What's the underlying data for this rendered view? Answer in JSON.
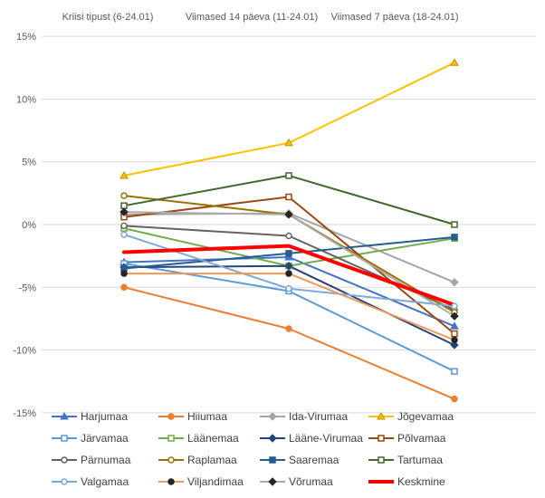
{
  "chart_data": {
    "type": "line",
    "title": "",
    "xlabel": "",
    "ylabel": "",
    "ylim": [
      -15,
      15
    ],
    "grid": true,
    "legend_position": "bottom",
    "value_suffix": "%",
    "categories": [
      "Kriisi tipust (6-24.01)",
      "Viimased 14 päeva (11-24.01)",
      "Viimased 7 päeva (18-24.01)"
    ],
    "y_ticks": [
      15,
      10,
      5,
      0,
      -5,
      -10,
      -15
    ],
    "y_tick_labels": [
      "15%",
      "10%",
      "5%",
      "0%",
      "-5%",
      "-10%",
      "-15%"
    ],
    "series": [
      {
        "name": "Harjumaa",
        "color": "#4472C4",
        "marker": "triangle",
        "marker_color": "#4472C4",
        "line_width": 2,
        "values": [
          -3.0,
          -2.6,
          -8.1
        ]
      },
      {
        "name": "Hiiumaa",
        "color": "#ED7D31",
        "marker": "circle",
        "marker_color": "#ED7D31",
        "line_width": 2,
        "values": [
          -5.0,
          -8.3,
          -13.9
        ]
      },
      {
        "name": "Ida-Virumaa",
        "color": "#A5A5A5",
        "marker": "diamond",
        "marker_color": "#A5A5A5",
        "line_width": 2,
        "values": [
          0.8,
          0.9,
          -4.6
        ]
      },
      {
        "name": "Jõgevamaa",
        "color": "#FFC000",
        "marker": "triangle",
        "marker_color": "#BF8F00",
        "line_width": 2,
        "values": [
          3.9,
          6.5,
          12.9
        ]
      },
      {
        "name": "Järvamaa",
        "color": "#5B9BD5",
        "marker": "square-open",
        "marker_color": "#5B9BD5",
        "line_width": 2,
        "values": [
          -3.1,
          -5.3,
          -11.7
        ]
      },
      {
        "name": "Läänemaa",
        "color": "#70AD47",
        "marker": "square-open",
        "marker_color": "#70AD47",
        "line_width": 2,
        "values": [
          -0.3,
          -3.3,
          -1.1
        ]
      },
      {
        "name": "Lääne-Virumaa",
        "color": "#264478",
        "marker": "diamond",
        "marker_color": "#264478",
        "line_width": 2,
        "values": [
          -3.4,
          -3.3,
          -9.6
        ]
      },
      {
        "name": "Põlvamaa",
        "color": "#9E480E",
        "marker": "square-open",
        "marker_color": "#9E480E",
        "line_width": 2,
        "values": [
          0.6,
          2.2,
          -8.7
        ]
      },
      {
        "name": "Pärnumaa",
        "color": "#636363",
        "marker": "circle-open",
        "marker_color": "#636363",
        "line_width": 2,
        "values": [
          -0.1,
          -0.9,
          -6.8
        ]
      },
      {
        "name": "Raplamaa",
        "color": "#997300",
        "marker": "circle-open",
        "marker_color": "#997300",
        "line_width": 2,
        "values": [
          2.3,
          0.8,
          -7.0
        ]
      },
      {
        "name": "Saaremaa",
        "color": "#255E91",
        "marker": "square",
        "marker_color": "#255E91",
        "line_width": 2,
        "values": [
          -3.5,
          -2.3,
          -1.0
        ]
      },
      {
        "name": "Tartumaa",
        "color": "#43682B",
        "marker": "square-open",
        "marker_color": "#43682B",
        "line_width": 2,
        "values": [
          1.5,
          3.9,
          0.0
        ]
      },
      {
        "name": "Valgamaa",
        "color": "#7CA9DC",
        "marker": "circle-open",
        "marker_color": "#7CA9DC",
        "line_width": 2,
        "values": [
          -0.8,
          -5.1,
          -6.5
        ]
      },
      {
        "name": "Viljandimaa",
        "color": "#F1975A",
        "marker": "circle",
        "marker_color": "#262626",
        "line_width": 2,
        "values": [
          -3.9,
          -3.9,
          -9.2
        ]
      },
      {
        "name": "Võrumaa",
        "color": "#ABABAB",
        "marker": "diamond",
        "marker_color": "#262626",
        "line_width": 2,
        "values": [
          1.0,
          0.8,
          -7.3
        ]
      },
      {
        "name": "Keskmine",
        "color": "#FF0000",
        "marker": "none",
        "marker_color": "#FF0000",
        "line_width": 4,
        "values": [
          -2.2,
          -1.7,
          -6.4
        ]
      }
    ]
  },
  "layout_colors": {
    "gridline": "#D9D9D9",
    "axis_text": "#595959",
    "legend_text": "#404040",
    "background": "#FFFFFF"
  }
}
